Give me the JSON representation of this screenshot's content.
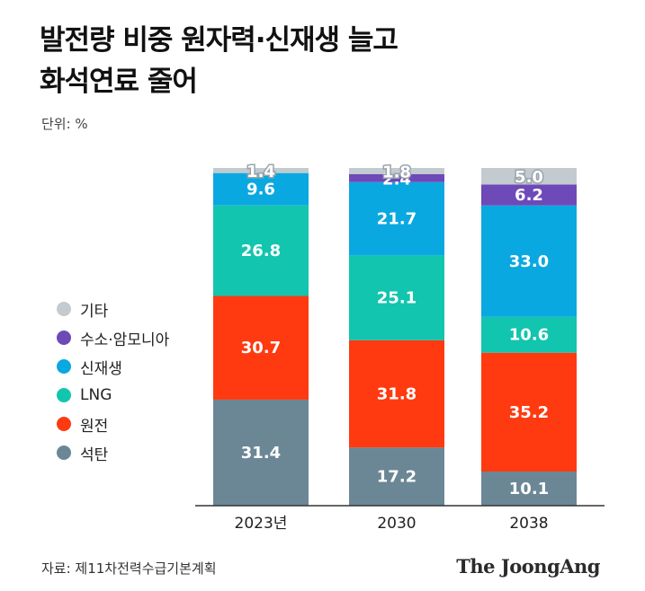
{
  "header": {
    "title_line1": "발전량 비중 원자력·신재생 늘고",
    "title_line2": "화석연료 줄어",
    "unit": "단위: %"
  },
  "footer": {
    "source": "자료: 제11차전력수급기본계획",
    "brand": "The JoongAng"
  },
  "chart_data": {
    "type": "bar",
    "stacked": true,
    "categories": [
      "2023년",
      "2030",
      "2038"
    ],
    "series": [
      {
        "name": "석탄",
        "color": "#6b8796",
        "values": [
          31.4,
          17.2,
          10.1
        ]
      },
      {
        "name": "원전",
        "color": "#ff3a10",
        "values": [
          30.7,
          31.8,
          35.2
        ]
      },
      {
        "name": "LNG",
        "color": "#12c5ae",
        "values": [
          26.8,
          25.1,
          10.6
        ]
      },
      {
        "name": "신재생",
        "color": "#0aa8e0",
        "values": [
          9.6,
          21.7,
          33.0
        ]
      },
      {
        "name": "수소·암모니아",
        "color": "#6e49b8",
        "values": [
          0,
          2.4,
          6.2
        ]
      },
      {
        "name": "기타",
        "color": "#c3cbd0",
        "values": [
          1.4,
          1.8,
          5.0
        ]
      }
    ],
    "ylim": [
      0,
      100
    ],
    "legend_position": "left",
    "grid": false
  }
}
